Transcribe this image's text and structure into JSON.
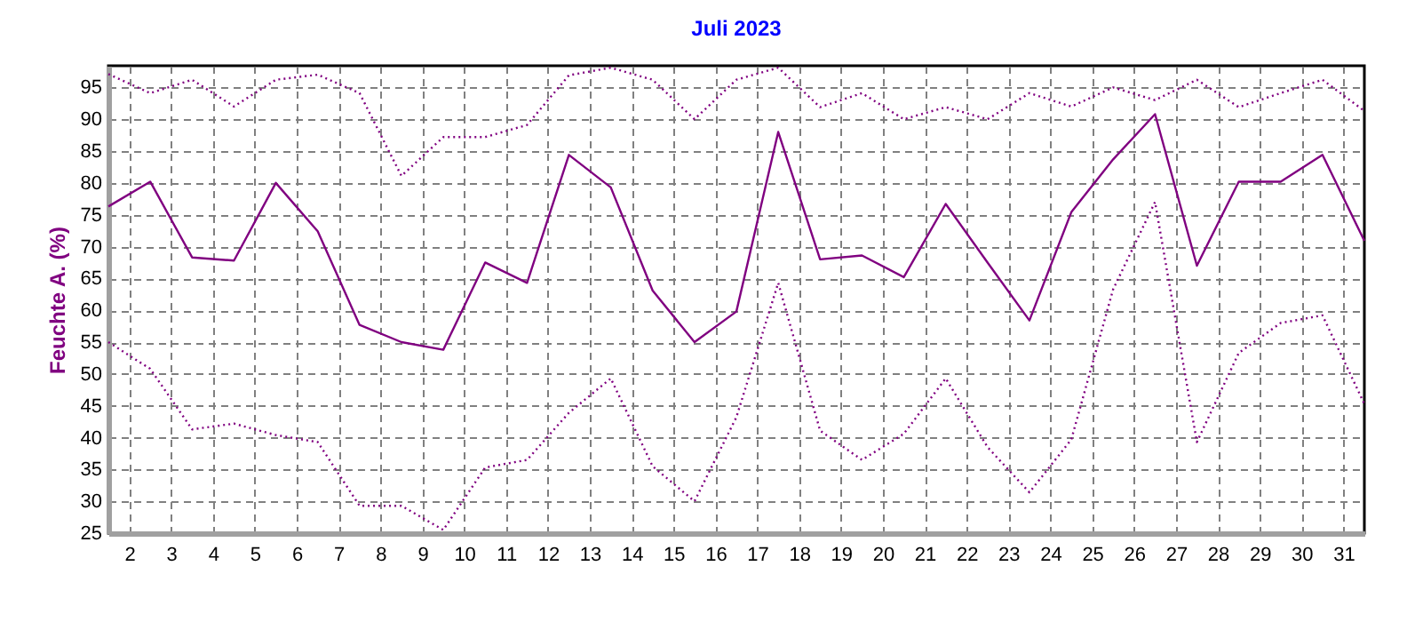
{
  "chart_data": {
    "type": "line",
    "title": "Juli 2023",
    "ylabel": "Feuchte A. (%)",
    "x": [
      1.5,
      2.5,
      3.5,
      4.5,
      5.5,
      6.5,
      7.5,
      8.5,
      9.5,
      10.5,
      11.5,
      12.5,
      13.5,
      14.5,
      15.5,
      16.5,
      17.5,
      18.5,
      19.5,
      20.5,
      21.5,
      22.5,
      23.5,
      24.5,
      25.5,
      26.5,
      27.5,
      28.5,
      29.5,
      30.5,
      31.5
    ],
    "series": [
      {
        "color": "#800080",
        "line_style": "dotted",
        "values": [
          97.1,
          94.1,
          96.2,
          92,
          96.2,
          97,
          94.1,
          81.1,
          87.2,
          87.2,
          89.1,
          96.9,
          98.1,
          96.2,
          90,
          96.2,
          98.1,
          91.9,
          94.1,
          90,
          91.9,
          90,
          94.1,
          92,
          95,
          93,
          96.2,
          91.9,
          94.1,
          96.2,
          91.3
        ]
      },
      {
        "color": "#800080",
        "line_style": "solid",
        "values": [
          76.3,
          80.2,
          68.3,
          67.8,
          80,
          72.4,
          57.7,
          55,
          53.8,
          67.5,
          64.3,
          84.4,
          79.3,
          63.1,
          55,
          59.8,
          88,
          68,
          68.6,
          65.2,
          76.7,
          67.5,
          58.4,
          75.4,
          83.7,
          90.8,
          67,
          80.2,
          80.2,
          84.4,
          70.9
        ]
      },
      {
        "color": "#800080",
        "line_style": "dotted",
        "values": [
          55,
          50.8,
          41.3,
          42.2,
          40.4,
          39.3,
          29.3,
          29.3,
          25.5,
          35.3,
          36.5,
          43.9,
          49.3,
          35.5,
          30,
          43.2,
          64.3,
          41.1,
          36.5,
          40.6,
          49.3,
          38.5,
          31.4,
          39.7,
          63.3,
          77,
          39.3,
          53.3,
          58,
          59.2,
          45.3
        ]
      }
    ],
    "xlim": [
      1.5,
      31.5
    ],
    "xticks": [
      2,
      3,
      4,
      5,
      6,
      7,
      8,
      9,
      10,
      11,
      12,
      13,
      14,
      15,
      16,
      17,
      18,
      19,
      20,
      21,
      22,
      23,
      24,
      25,
      26,
      27,
      28,
      29,
      30,
      31
    ],
    "ylim": [
      25,
      98.4
    ],
    "yticks": [
      25,
      30,
      35,
      40,
      45,
      50,
      55,
      60,
      65,
      70,
      75,
      80,
      85,
      90,
      95
    ],
    "grid": true
  }
}
